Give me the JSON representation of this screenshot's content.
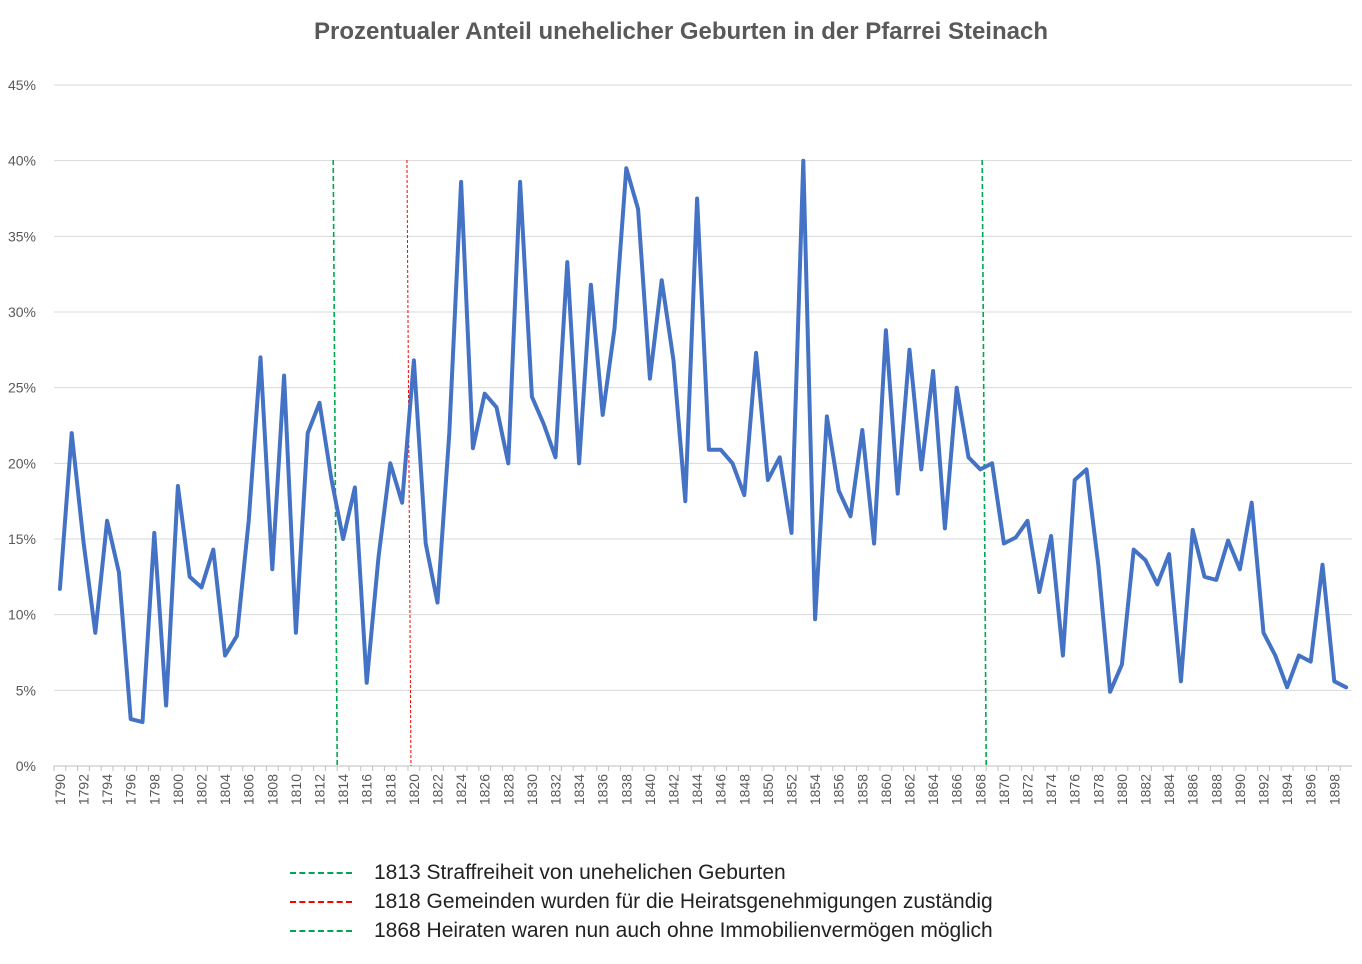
{
  "chart_data": {
    "type": "line",
    "title": "Prozentualer Anteil unehelicher Geburten in der Pfarrei Steinach",
    "xlabel": "",
    "ylabel": "",
    "ylim": [
      0,
      45
    ],
    "yticks": [
      "0%",
      "5%",
      "10%",
      "15%",
      "20%",
      "25%",
      "30%",
      "35%",
      "40%",
      "45%"
    ],
    "xlim": [
      1790,
      1899
    ],
    "xtick_step": 2,
    "grid": true,
    "series": [
      {
        "color": "#4472C4",
        "x": [
          1790,
          1791,
          1792,
          1793,
          1794,
          1795,
          1796,
          1797,
          1798,
          1799,
          1800,
          1801,
          1802,
          1803,
          1804,
          1805,
          1806,
          1807,
          1808,
          1809,
          1810,
          1811,
          1812,
          1813,
          1814,
          1815,
          1816,
          1817,
          1818,
          1819,
          1820,
          1821,
          1822,
          1823,
          1824,
          1825,
          1826,
          1827,
          1828,
          1829,
          1830,
          1831,
          1832,
          1833,
          1834,
          1835,
          1836,
          1837,
          1838,
          1839,
          1840,
          1841,
          1842,
          1843,
          1844,
          1845,
          1846,
          1847,
          1848,
          1849,
          1850,
          1851,
          1852,
          1853,
          1854,
          1855,
          1856,
          1857,
          1858,
          1859,
          1860,
          1861,
          1862,
          1863,
          1864,
          1865,
          1866,
          1867,
          1868,
          1869,
          1870,
          1871,
          1872,
          1873,
          1874,
          1875,
          1876,
          1877,
          1878,
          1879,
          1880,
          1881,
          1882,
          1883,
          1884,
          1885,
          1886,
          1887,
          1888,
          1889,
          1890,
          1891,
          1892,
          1893,
          1894,
          1895,
          1896,
          1897,
          1898,
          1899
        ],
        "values": [
          11.7,
          22.0,
          14.8,
          8.8,
          16.2,
          12.8,
          3.1,
          2.9,
          15.4,
          4.0,
          18.5,
          12.5,
          11.8,
          14.3,
          7.3,
          8.6,
          16.2,
          27.0,
          13.0,
          25.8,
          8.8,
          22.0,
          24.0,
          19.0,
          15.0,
          18.4,
          5.5,
          13.8,
          20.0,
          17.4,
          26.8,
          14.7,
          10.8,
          22.0,
          38.6,
          21.0,
          24.6,
          23.7,
          20.0,
          38.6,
          24.4,
          22.6,
          20.4,
          33.3,
          20.0,
          31.8,
          23.2,
          28.9,
          39.5,
          36.8,
          25.6,
          32.1,
          26.8,
          17.5,
          37.5,
          20.9,
          20.9,
          20.0,
          17.9,
          27.3,
          18.9,
          20.4,
          15.4,
          40.0,
          9.7,
          23.1,
          18.2,
          16.5,
          22.2,
          14.7,
          28.8,
          18.0,
          27.5,
          19.6,
          26.1,
          15.7,
          25.0,
          20.4,
          19.6,
          20.0,
          14.7,
          15.1,
          16.2,
          11.5,
          15.2,
          7.3,
          18.9,
          19.6,
          13.3,
          4.9,
          6.7,
          14.3,
          13.6,
          12.0,
          14.0,
          5.6,
          15.6,
          12.5,
          12.3,
          14.9,
          13.0,
          17.4,
          8.8,
          7.3,
          5.2,
          7.3,
          6.9,
          13.3,
          5.6,
          5.2
        ]
      }
    ],
    "markers": [
      {
        "x": 1813.5,
        "color": "#00A650",
        "label": "1813 Straffreiheit von unehelichen Geburten"
      },
      {
        "x": 1819.75,
        "color": "#FF0000",
        "label": "1818 Gemeinden wurden für die Heiratsgenehmigungen zuständig"
      },
      {
        "x": 1868.5,
        "color": "#00A650",
        "label": "1868 Heiraten waren nun auch ohne Immobilienvermögen möglich"
      }
    ]
  }
}
